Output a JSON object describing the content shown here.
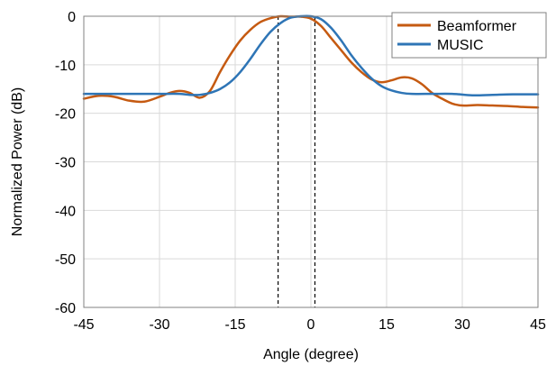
{
  "chart_data": {
    "type": "line",
    "title": "",
    "xlabel": "Angle (degree)",
    "ylabel": "Normalized Power (dB)",
    "xlim": [
      -45,
      45
    ],
    "ylim": [
      -60,
      0
    ],
    "xticks": [
      -45,
      -30,
      -15,
      0,
      15,
      30,
      45
    ],
    "yticks": [
      0,
      -10,
      -20,
      -30,
      -40,
      -50,
      -60
    ],
    "grid": true,
    "legend_position": "top-right",
    "reference_lines_x": [
      -6.5,
      0.8
    ],
    "series": [
      {
        "name": "Beamformer",
        "color": "#C55A11",
        "x": [
          -45,
          -42,
          -39,
          -36,
          -33,
          -30,
          -28,
          -26,
          -24,
          -22,
          -20,
          -18,
          -16,
          -14,
          -12,
          -10,
          -8,
          -6,
          -4,
          -2,
          0,
          2,
          4,
          6,
          8,
          10,
          12,
          14,
          16,
          18,
          20,
          22,
          24,
          26,
          28,
          30,
          33,
          36,
          39,
          42,
          45
        ],
        "y": [
          -17.0,
          -16.4,
          -16.6,
          -17.4,
          -17.6,
          -16.6,
          -15.8,
          -15.4,
          -15.8,
          -16.8,
          -15.4,
          -11.5,
          -8.0,
          -5.0,
          -2.8,
          -1.2,
          -0.4,
          0,
          -0.1,
          -0.1,
          -0.5,
          -2.0,
          -4.5,
          -7.0,
          -9.5,
          -11.5,
          -13.0,
          -13.6,
          -13.2,
          -12.6,
          -12.8,
          -14.0,
          -15.8,
          -17.0,
          -18.0,
          -18.4,
          -18.3,
          -18.4,
          -18.5,
          -18.7,
          -18.8
        ]
      },
      {
        "name": "MUSIC",
        "color": "#2E75B6",
        "x": [
          -45,
          -40,
          -35,
          -30,
          -26,
          -24,
          -22,
          -20,
          -18,
          -16,
          -14,
          -12,
          -10,
          -8,
          -6,
          -4,
          -2,
          0,
          2,
          4,
          6,
          8,
          10,
          12,
          14,
          16,
          18,
          20,
          24,
          28,
          32,
          36,
          40,
          45
        ],
        "y": [
          -16.0,
          -16.0,
          -16.0,
          -16.0,
          -16.0,
          -16.2,
          -16.2,
          -15.8,
          -15.0,
          -13.6,
          -11.5,
          -8.8,
          -5.8,
          -3.2,
          -1.4,
          -0.3,
          0,
          0,
          -0.6,
          -2.4,
          -5.0,
          -8.0,
          -10.6,
          -12.8,
          -14.4,
          -15.3,
          -15.8,
          -16.0,
          -16.0,
          -16.0,
          -16.3,
          -16.2,
          -16.1,
          -16.1
        ]
      }
    ]
  }
}
